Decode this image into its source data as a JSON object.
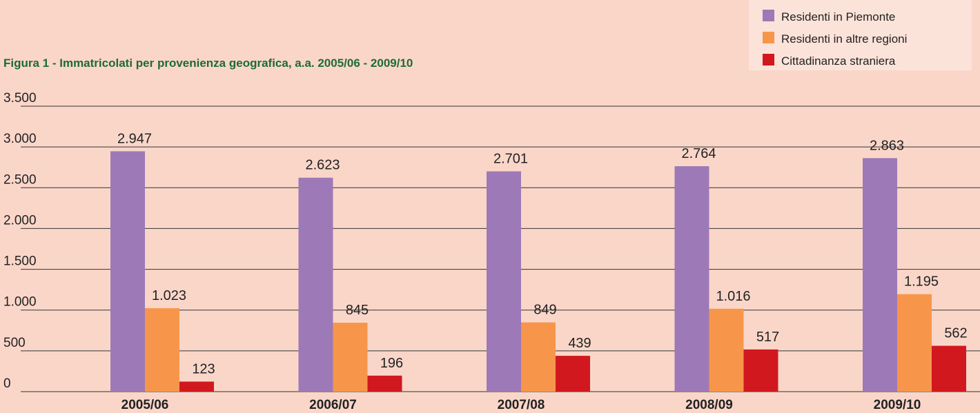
{
  "chart_data": {
    "type": "bar",
    "title": "Figura 1 - Immatricolati per provenienza geografica, a.a. 2005/06 - 2009/10",
    "categories": [
      "2005/06",
      "2006/07",
      "2007/08",
      "2008/09",
      "2009/10"
    ],
    "series": [
      {
        "name": "Residenti in Piemonte",
        "color": "#9d79b8",
        "values": [
          2947,
          2623,
          2701,
          2764,
          2863
        ],
        "value_labels": [
          "2.947",
          "2.623",
          "2.701",
          "2.764",
          "2.863"
        ]
      },
      {
        "name": "Residenti in altre regioni",
        "color": "#f7964a",
        "values": [
          1023,
          845,
          849,
          1016,
          1195
        ],
        "value_labels": [
          "1.023",
          "845",
          "849",
          "1.016",
          "1.195"
        ]
      },
      {
        "name": "Cittadinanza straniera",
        "color": "#d2181f",
        "values": [
          123,
          196,
          439,
          517,
          562
        ],
        "value_labels": [
          "123",
          "196",
          "439",
          "517",
          "562"
        ]
      }
    ],
    "ylim": [
      0,
      3500
    ],
    "yticks": [
      0,
      500,
      {
        "value": 1000,
        "label": "1.000"
      },
      {
        "value": 1500,
        "label": "1.500"
      },
      {
        "value": 2000,
        "label": "2.000"
      },
      {
        "value": 2500,
        "label": "2.500"
      },
      {
        "value": 3000,
        "label": "3.000"
      },
      {
        "value": 3500,
        "label": "3.500"
      }
    ],
    "grid": true,
    "legend": "top-right"
  }
}
